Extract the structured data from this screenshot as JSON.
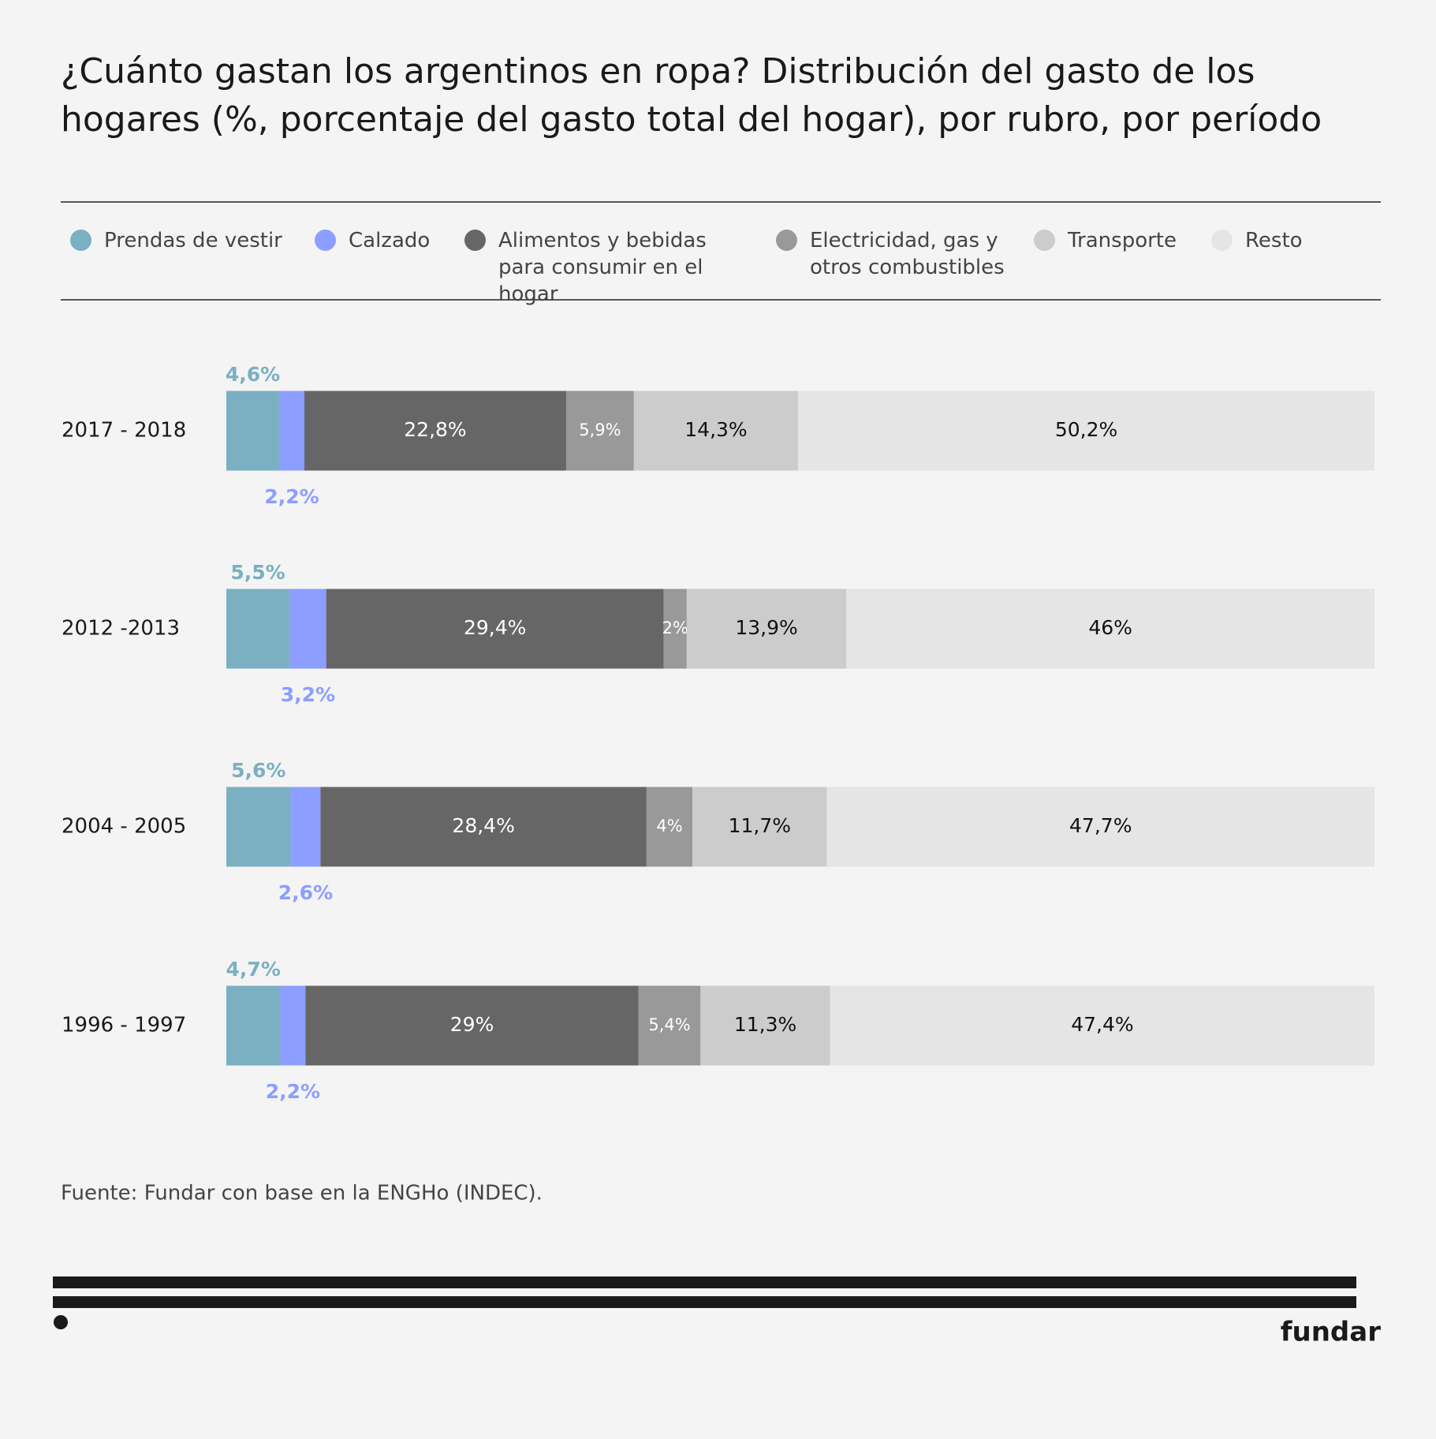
{
  "chart_data": {
    "type": "stacked_barh",
    "title": "¿Cuánto gastan los argentinos en ropa? Distribución del gasto de los hogares (%, porcentaje del gasto total del hogar), por rubro, por período",
    "categories": [
      "2017 - 2018",
      "2012 -2013",
      "2004 - 2005",
      "1996 - 1997"
    ],
    "series": [
      {
        "name": "Prendas de vestir",
        "color": "#7ab0c1",
        "label_position": "above",
        "values": [
          4.6,
          5.5,
          5.6,
          4.7
        ],
        "value_labels": [
          "4,6%",
          "5,5%",
          "5,6%",
          "4,7%"
        ]
      },
      {
        "name": "Calzado",
        "color": "#8c9eff",
        "label_position": "below",
        "values": [
          2.2,
          3.2,
          2.6,
          2.2
        ],
        "value_labels": [
          "2,2%",
          "3,2%",
          "2,6%",
          "2,2%"
        ]
      },
      {
        "name": "Alimentos y bebidas para consumir en el hogar",
        "color": "#666666",
        "label_position": "inside",
        "values": [
          22.8,
          29.4,
          28.4,
          29
        ],
        "value_labels": [
          "22,8%",
          "29,4%",
          "28,4%",
          "29%"
        ]
      },
      {
        "name": "Electricidad, gas y otros combustibles",
        "color": "#999999",
        "label_position": "inside",
        "values": [
          5.9,
          2,
          4,
          5.4
        ],
        "value_labels": [
          "5,9%",
          "2%",
          "4%",
          "5,4%"
        ]
      },
      {
        "name": "Transporte",
        "color": "#cccccc",
        "label_position": "inside",
        "values": [
          14.3,
          13.9,
          11.7,
          11.3
        ],
        "value_labels": [
          "14,3%",
          "13,9%",
          "11,7%",
          "11,3%"
        ]
      },
      {
        "name": "Resto",
        "color": "#e5e5e5",
        "label_position": "inside",
        "values": [
          50.2,
          46,
          47.7,
          47.4
        ],
        "value_labels": [
          "50,2%",
          "46%",
          "47,7%",
          "47,4%"
        ]
      }
    ],
    "source": "Fuente: Fundar con base en la ENGHo (INDEC).",
    "brand": "fundar"
  }
}
